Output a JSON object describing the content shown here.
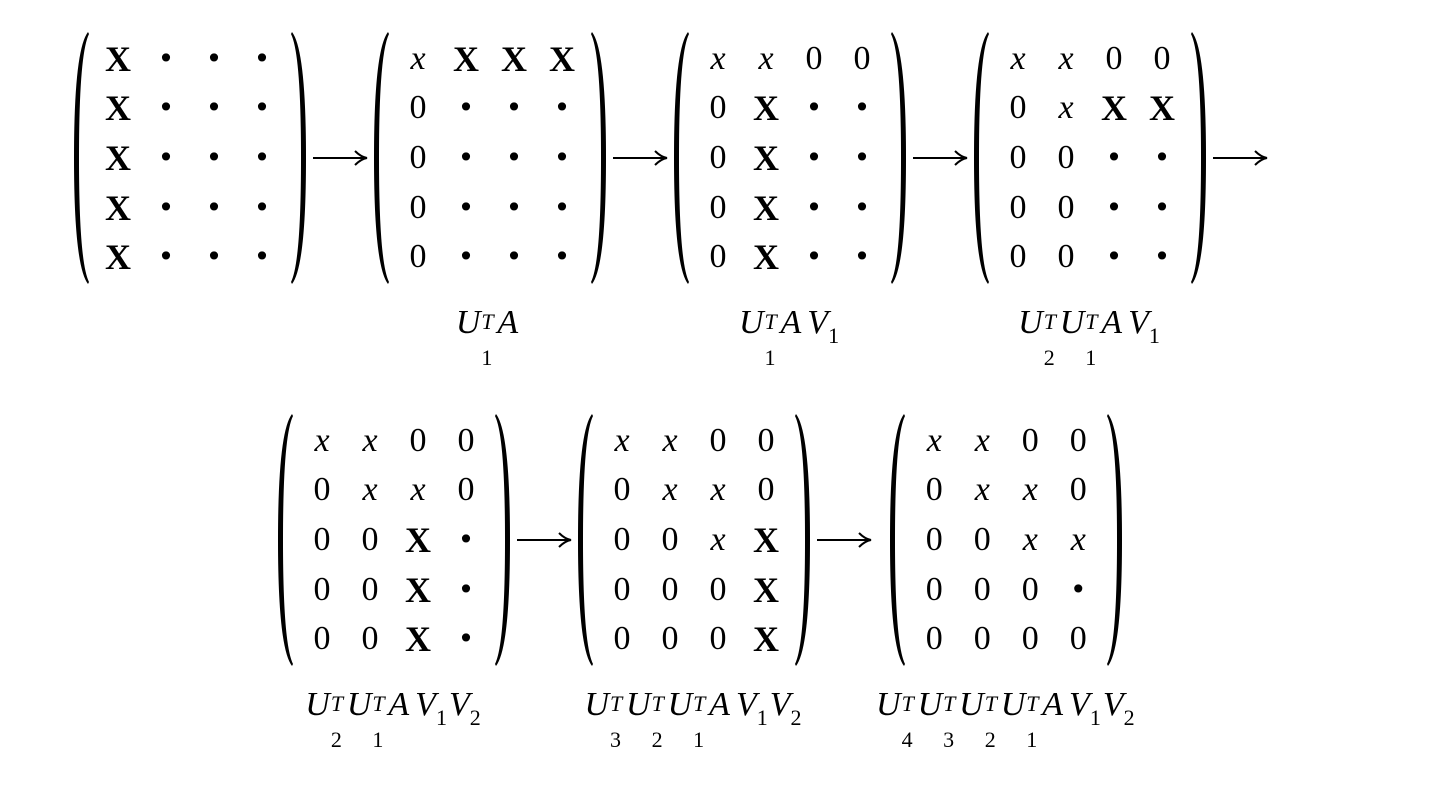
{
  "arrow_symbol": "→",
  "matrices": [
    {
      "label": [],
      "cells": [
        [
          "X",
          "•",
          "•",
          "•"
        ],
        [
          "X",
          "•",
          "•",
          "•"
        ],
        [
          "X",
          "•",
          "•",
          "•"
        ],
        [
          "X",
          "•",
          "•",
          "•"
        ],
        [
          "X",
          "•",
          "•",
          "•"
        ]
      ]
    },
    {
      "label": [
        [
          "U",
          "T",
          "1"
        ],
        [
          "A",
          "",
          ""
        ]
      ],
      "cells": [
        [
          "x",
          "X",
          "X",
          "X"
        ],
        [
          "0",
          "•",
          "•",
          "•"
        ],
        [
          "0",
          "•",
          "•",
          "•"
        ],
        [
          "0",
          "•",
          "•",
          "•"
        ],
        [
          "0",
          "•",
          "•",
          "•"
        ]
      ]
    },
    {
      "label": [
        [
          "U",
          "T",
          "1"
        ],
        [
          "A",
          "",
          ""
        ],
        [
          "V",
          "",
          "1"
        ]
      ],
      "cells": [
        [
          "x",
          "x",
          "0",
          "0"
        ],
        [
          "0",
          "X",
          "•",
          "•"
        ],
        [
          "0",
          "X",
          "•",
          "•"
        ],
        [
          "0",
          "X",
          "•",
          "•"
        ],
        [
          "0",
          "X",
          "•",
          "•"
        ]
      ]
    },
    {
      "label": [
        [
          "U",
          "T",
          "2"
        ],
        [
          "U",
          "T",
          "1"
        ],
        [
          "A",
          "",
          ""
        ],
        [
          "V",
          "",
          "1"
        ]
      ],
      "cells": [
        [
          "x",
          "x",
          "0",
          "0"
        ],
        [
          "0",
          "x",
          "X",
          "X"
        ],
        [
          "0",
          "0",
          "•",
          "•"
        ],
        [
          "0",
          "0",
          "•",
          "•"
        ],
        [
          "0",
          "0",
          "•",
          "•"
        ]
      ]
    },
    {
      "label": [
        [
          "U",
          "T",
          "2"
        ],
        [
          "U",
          "T",
          "1"
        ],
        [
          "A",
          "",
          ""
        ],
        [
          "V",
          "",
          "1"
        ],
        [
          "V",
          "",
          "2"
        ]
      ],
      "cells": [
        [
          "x",
          "x",
          "0",
          "0"
        ],
        [
          "0",
          "x",
          "x",
          "0"
        ],
        [
          "0",
          "0",
          "X",
          "•"
        ],
        [
          "0",
          "0",
          "X",
          "•"
        ],
        [
          "0",
          "0",
          "X",
          "•"
        ]
      ]
    },
    {
      "label": [
        [
          "U",
          "T",
          "3"
        ],
        [
          "U",
          "T",
          "2"
        ],
        [
          "U",
          "T",
          "1"
        ],
        [
          "A",
          "",
          ""
        ],
        [
          "V",
          "",
          "1"
        ],
        [
          "V",
          "",
          "2"
        ]
      ],
      "cells": [
        [
          "x",
          "x",
          "0",
          "0"
        ],
        [
          "0",
          "x",
          "x",
          "0"
        ],
        [
          "0",
          "0",
          "x",
          "X"
        ],
        [
          "0",
          "0",
          "0",
          "X"
        ],
        [
          "0",
          "0",
          "0",
          "X"
        ]
      ]
    },
    {
      "label": [
        [
          "U",
          "T",
          "4"
        ],
        [
          "U",
          "T",
          "3"
        ],
        [
          "U",
          "T",
          "2"
        ],
        [
          "U",
          "T",
          "1"
        ],
        [
          "A",
          "",
          ""
        ],
        [
          "V",
          "",
          "1"
        ],
        [
          "V",
          "",
          "2"
        ]
      ],
      "cells": [
        [
          "x",
          "x",
          "0",
          "0"
        ],
        [
          "0",
          "x",
          "x",
          "0"
        ],
        [
          "0",
          "0",
          "x",
          "x"
        ],
        [
          "0",
          "0",
          "0",
          "•"
        ],
        [
          "0",
          "0",
          "0",
          "0"
        ]
      ]
    }
  ]
}
